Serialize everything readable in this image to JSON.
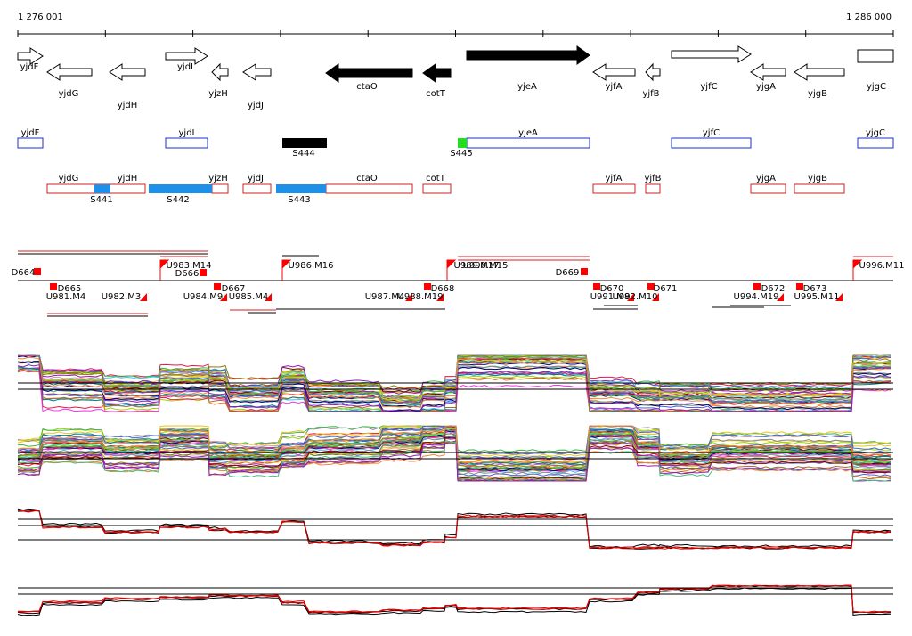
{
  "ruler": {
    "start": "1 276 001",
    "end": "1 286 000"
  },
  "genes": [
    "yjdF",
    "yjdG",
    "yjdH",
    "yjdI",
    "yjzH",
    "yjdJ",
    "ctaO",
    "cotT",
    "yjeA",
    "yjfA",
    "yjfB",
    "yjfC",
    "yjgA",
    "yjgB",
    "yjgC"
  ],
  "features_top": [
    "yjdF",
    "yjdI",
    "yjeA",
    "yjfC",
    "yjgC"
  ],
  "segments_top": [
    "S444",
    "S445"
  ],
  "features_bottom": [
    "yjdG",
    "yjdH",
    "yjzH",
    "yjdJ",
    "ctaO",
    "cotT",
    "yjfA",
    "yjfB",
    "yjgA",
    "yjgB"
  ],
  "segments_bottom": [
    "S441",
    "S442",
    "S443"
  ],
  "units": [
    "D664",
    "D665",
    "U981.M4",
    "U982.M3",
    "U983.M14",
    "D666",
    "U984.M9",
    "D667",
    "U985.M4",
    "U986.M16",
    "U987.M4",
    "U988.M19",
    "D668",
    "U989.M17",
    "U990.M15",
    "D669",
    "D670",
    "U991.M8",
    "U992.M10",
    "D671",
    "U994.M19",
    "D672",
    "D673",
    "U995.M11",
    "U996.M11"
  ]
}
